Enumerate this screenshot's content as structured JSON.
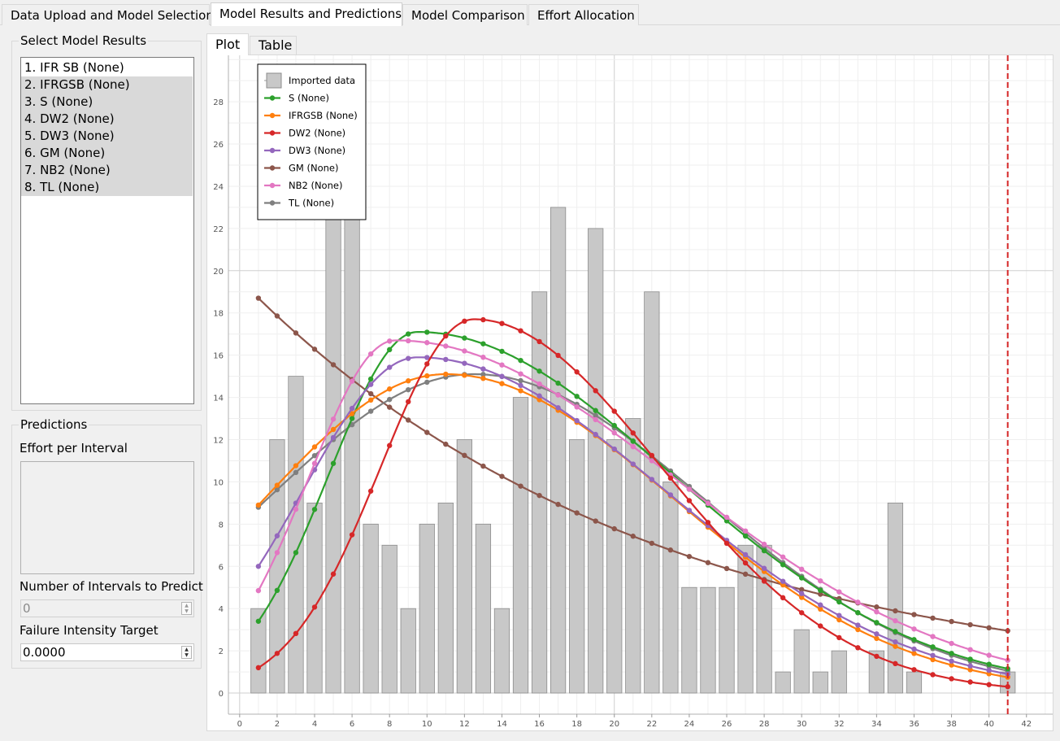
{
  "main_tabs": [
    {
      "label": "Data Upload and Model Selection"
    },
    {
      "label": "Model Results and Predictions"
    },
    {
      "label": "Model Comparison"
    },
    {
      "label": "Effort Allocation"
    }
  ],
  "select_models": {
    "title": "Select Model Results",
    "items": [
      {
        "label": "1. IFR SB (None)"
      },
      {
        "label": "2. IFRGSB (None)"
      },
      {
        "label": "3. S (None)"
      },
      {
        "label": "4. DW2 (None)"
      },
      {
        "label": "5. DW3 (None)"
      },
      {
        "label": "6. GM (None)"
      },
      {
        "label": "7. NB2 (None)"
      },
      {
        "label": "8. TL (None)"
      }
    ]
  },
  "predictions": {
    "title": "Predictions",
    "effort_label": "Effort per Interval",
    "intervals_label": "Number of Intervals to Predict",
    "intervals_value": "0",
    "target_label": "Failure Intensity Target",
    "target_value": "0.0000"
  },
  "sub_tabs": [
    {
      "label": "Plot"
    },
    {
      "label": "Table"
    }
  ],
  "chart_data": {
    "type": "bar+line",
    "xlim": [
      -0.6,
      43.4
    ],
    "ylim": [
      -1.0,
      30.2
    ],
    "x_ticks": [
      0,
      2,
      4,
      6,
      8,
      10,
      12,
      14,
      16,
      18,
      20,
      22,
      24,
      26,
      28,
      30,
      32,
      34,
      36,
      38,
      40,
      42
    ],
    "y_ticks": [
      0,
      2,
      4,
      6,
      8,
      10,
      12,
      14,
      16,
      18,
      20,
      22,
      24,
      26,
      28
    ],
    "grid": true,
    "legend_position": "top-left",
    "marker_line_x": 41,
    "marker_line_color": "#d62728",
    "bars": {
      "name": "Imported data",
      "color": "#c8c8c8",
      "x": [
        1,
        2,
        3,
        4,
        5,
        6,
        7,
        8,
        9,
        10,
        11,
        12,
        13,
        14,
        15,
        16,
        17,
        18,
        19,
        20,
        21,
        22,
        23,
        24,
        25,
        26,
        27,
        28,
        29,
        30,
        31,
        32,
        33,
        34,
        35,
        36,
        37,
        38,
        39,
        40,
        41
      ],
      "values": [
        4,
        12,
        15,
        9,
        23,
        23,
        8,
        7,
        4,
        8,
        9,
        12,
        8,
        4,
        14,
        19,
        23,
        12,
        22,
        12,
        13,
        19,
        10,
        5,
        5,
        5,
        7,
        7,
        1,
        3,
        1,
        2,
        0,
        2,
        9,
        1,
        0,
        0,
        0,
        0,
        1
      ]
    },
    "series": [
      {
        "name": "S (None)",
        "color": "#2ca02c",
        "shape": "curve",
        "peak_x": 9.5,
        "peak_y": 17.1,
        "left_y": 3.4,
        "right_y": 1.15
      },
      {
        "name": "IFRGSB (None)",
        "color": "#ff7f0e",
        "shape": "curve",
        "peak_x": 11,
        "peak_y": 15.1,
        "left_y": 8.9,
        "right_y": 0.75
      },
      {
        "name": "DW2 (None)",
        "color": "#d62728",
        "shape": "curve",
        "peak_x": 12.5,
        "peak_y": 17.7,
        "left_y": 1.2,
        "right_y": 0.3
      },
      {
        "name": "DW3 (None)",
        "color": "#9467bd",
        "shape": "curve",
        "peak_x": 9.5,
        "peak_y": 15.9,
        "left_y": 6.0,
        "right_y": 0.9
      },
      {
        "name": "GM (None)",
        "color": "#8c564b",
        "shape": "decay",
        "left_y": 18.7,
        "right_y": 2.95
      },
      {
        "name": "NB2 (None)",
        "color": "#e377c2",
        "shape": "curve",
        "peak_x": 8.3,
        "peak_y": 16.7,
        "left_y": 4.85,
        "right_y": 1.55
      },
      {
        "name": "TL (None)",
        "color": "#7f7f7f",
        "shape": "curve",
        "peak_x": 12.5,
        "peak_y": 15.1,
        "left_y": 8.8,
        "right_y": 1.05
      }
    ]
  }
}
